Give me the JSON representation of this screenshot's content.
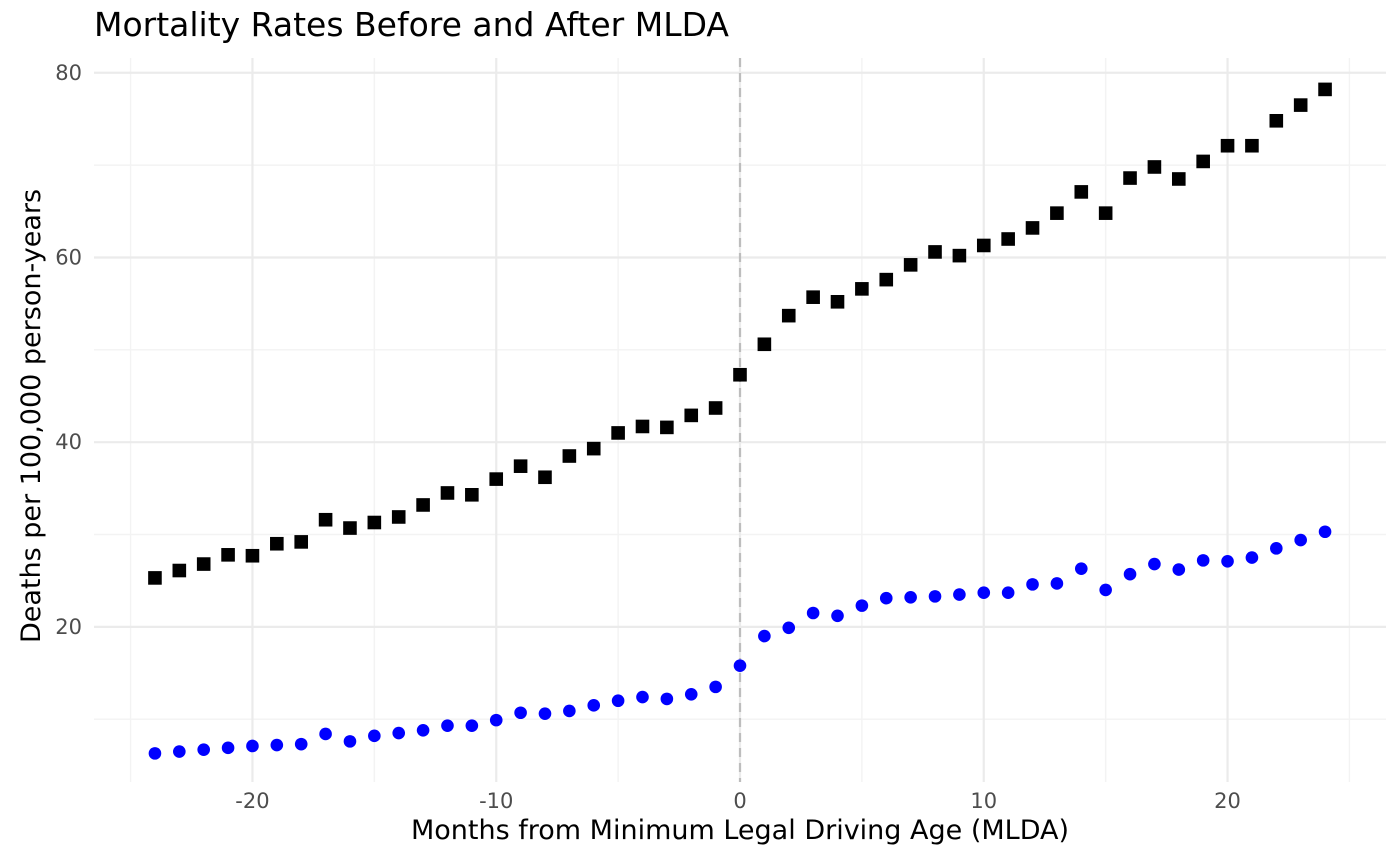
{
  "chart_data": {
    "type": "scatter",
    "title": "Mortality Rates Before and After MLDA",
    "xlabel": "Months from Minimum Legal Driving Age (MLDA)",
    "ylabel": "Deaths per 100,000 person-years",
    "xlim": [
      -26.5,
      26.5
    ],
    "ylim": [
      3.2,
      81.6
    ],
    "x_ticks": [
      -20,
      -10,
      0,
      10,
      20
    ],
    "y_ticks": [
      20,
      40,
      60,
      80
    ],
    "x_tick_labels": [
      "-20",
      "-10",
      "0",
      "10",
      "20"
    ],
    "y_tick_labels": [
      "20",
      "40",
      "60",
      "80"
    ],
    "grid": true,
    "legend": "none",
    "reference_line": {
      "x": 0,
      "style": "dashed",
      "color": "#bdbdbd"
    },
    "x": [
      -24,
      -23,
      -22,
      -21,
      -20,
      -19,
      -18,
      -17,
      -16,
      -15,
      -14,
      -13,
      -12,
      -11,
      -10,
      -9,
      -8,
      -7,
      -6,
      -5,
      -4,
      -3,
      -2,
      -1,
      0,
      1,
      2,
      3,
      4,
      5,
      6,
      7,
      8,
      9,
      10,
      11,
      12,
      13,
      14,
      15,
      16,
      17,
      18,
      19,
      20,
      21,
      22,
      23,
      24
    ],
    "series": [
      {
        "marker": "square",
        "color": "#000000",
        "values": [
          25.3,
          26.1,
          26.8,
          27.8,
          27.7,
          29.0,
          29.2,
          31.6,
          30.7,
          31.3,
          31.9,
          33.2,
          34.5,
          34.3,
          36.0,
          37.4,
          36.2,
          38.5,
          39.3,
          41.0,
          41.7,
          41.6,
          42.9,
          43.7,
          47.3,
          50.6,
          53.7,
          55.7,
          55.2,
          56.6,
          57.6,
          59.2,
          60.6,
          60.2,
          61.3,
          62.0,
          63.2,
          64.8,
          67.1,
          64.8,
          68.6,
          69.8,
          68.5,
          70.4,
          72.1,
          72.1,
          74.8,
          76.5,
          78.2
        ]
      },
      {
        "marker": "circle",
        "color": "#0000ff",
        "values": [
          6.3,
          6.5,
          6.7,
          6.9,
          7.1,
          7.2,
          7.3,
          8.4,
          7.6,
          8.2,
          8.5,
          8.8,
          9.3,
          9.3,
          9.9,
          10.7,
          10.6,
          10.9,
          11.5,
          12.0,
          12.4,
          12.2,
          12.7,
          13.5,
          15.8,
          19.0,
          19.9,
          21.5,
          21.2,
          22.3,
          23.1,
          23.2,
          23.3,
          23.5,
          23.7,
          23.7,
          24.6,
          24.7,
          26.3,
          24.0,
          25.7,
          26.8,
          26.2,
          27.2,
          27.1,
          27.5,
          28.5,
          29.4,
          30.3
        ]
      }
    ]
  }
}
